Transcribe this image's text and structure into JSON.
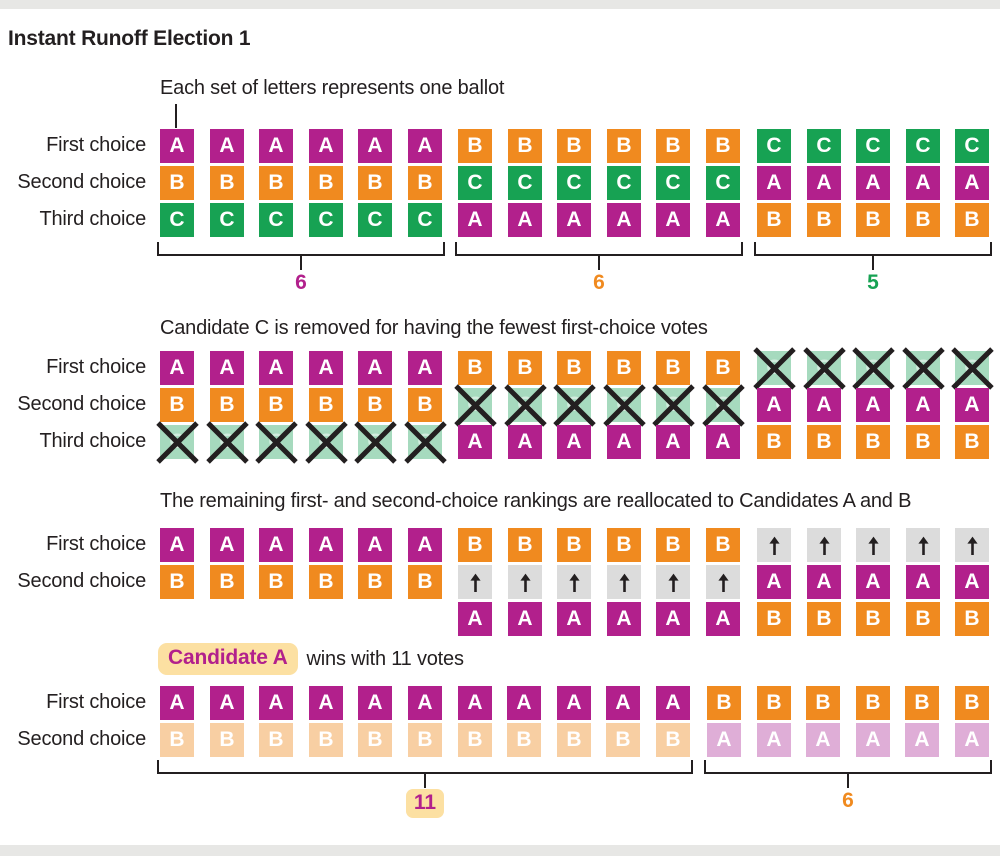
{
  "title": "Instant Runoff Election 1",
  "colors": {
    "magenta": "#b2208c",
    "orange": "#f08a1f",
    "green": "#17a253",
    "removed_green": "#a6dabe",
    "gray": "#dcdcdc",
    "faded_orange": "#f8cfa3",
    "faded_magenta": "#dfaed7",
    "highlight_yellow": "#fce0a2",
    "ink": "#231f20",
    "divider_gray": "#e7e7e5",
    "white": "#ffffff"
  },
  "icons": {
    "arrow_up": "up-arrow glyph in gray reallocation cell",
    "cross_out": "black X over removed candidate cell"
  },
  "cells": {
    "A": {
      "letter": "A",
      "bg": "magenta"
    },
    "B": {
      "letter": "B",
      "bg": "orange"
    },
    "C": {
      "letter": "C",
      "bg": "green"
    },
    "X": {
      "letter": "C",
      "bg": "removed_green",
      "variant": "crossed-out"
    },
    "UP": {
      "letter": "",
      "bg": "gray",
      "variant": "arrow-up"
    },
    "b": {
      "letter": "B",
      "bg": "faded_orange",
      "variant": "faded"
    },
    "a": {
      "letter": "A",
      "bg": "faded_magenta",
      "variant": "faded"
    }
  },
  "sections": [
    {
      "id": "initial",
      "header": "Each set of letters represents one ballot",
      "labels": [
        "First choice",
        "Second choice",
        "Third choice"
      ],
      "groups": [
        {
          "ballots": 6,
          "stack": [
            "A",
            "B",
            "C"
          ],
          "count": "6",
          "count_color": "magenta"
        },
        {
          "ballots": 6,
          "stack": [
            "B",
            "C",
            "A"
          ],
          "count": "6",
          "count_color": "orange"
        },
        {
          "ballots": 5,
          "stack": [
            "C",
            "A",
            "B"
          ],
          "count": "5",
          "count_color": "green"
        }
      ]
    },
    {
      "id": "c-removed",
      "header": "Candidate C is removed for having the fewest first-choice votes",
      "labels": [
        "First choice",
        "Second choice",
        "Third choice"
      ],
      "groups": [
        {
          "ballots": 6,
          "stack": [
            "A",
            "B",
            "X"
          ]
        },
        {
          "ballots": 6,
          "stack": [
            "B",
            "X",
            "A"
          ]
        },
        {
          "ballots": 5,
          "stack": [
            "X",
            "A",
            "B"
          ]
        }
      ]
    },
    {
      "id": "reallocated",
      "header": "The remaining first- and second-choice rankings are reallocated to Candidates A and B",
      "labels": [
        "First choice",
        "Second choice"
      ],
      "groups": [
        {
          "ballots": 6,
          "stack": [
            "A",
            "B"
          ]
        },
        {
          "ballots": 6,
          "stack": [
            "B",
            "UP",
            "A"
          ]
        },
        {
          "ballots": 5,
          "stack": [
            "UP",
            "A",
            "B"
          ]
        }
      ]
    },
    {
      "id": "result",
      "header_highlight": "Candidate A",
      "header_rest": "wins with 11 votes",
      "labels": [
        "First choice",
        "Second choice"
      ],
      "groups": [
        {
          "ballots": 11,
          "stack": [
            "A",
            "b"
          ],
          "count": "11",
          "count_color": "magenta",
          "count_highlighted": true
        },
        {
          "ballots": 6,
          "stack": [
            "B",
            "a"
          ],
          "count": "6",
          "count_color": "orange"
        }
      ]
    }
  ]
}
